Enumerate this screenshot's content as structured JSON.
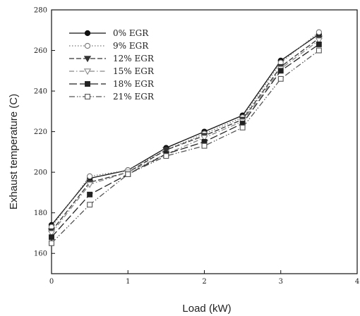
{
  "chart_data": {
    "type": "line",
    "title": "",
    "xlabel": "Load (kW)",
    "ylabel": "Exhaust temperature (C)",
    "xlim": [
      0,
      4
    ],
    "ylim": [
      150,
      280
    ],
    "xticks": [
      0,
      1,
      2,
      3,
      4
    ],
    "yticks": [
      160,
      180,
      200,
      220,
      240,
      260,
      280
    ],
    "grid": false,
    "legend_position": "top-left",
    "x": [
      0,
      0.5,
      1,
      1.5,
      2,
      2.5,
      3,
      3.5
    ],
    "series": [
      {
        "name": "0% EGR",
        "marker": "circle-filled",
        "dash": "solid",
        "values": [
          174,
          197,
          201,
          212,
          220,
          228,
          255,
          268
        ]
      },
      {
        "name": "9% EGR",
        "marker": "circle-open",
        "dash": "dotted",
        "values": [
          173,
          198,
          201,
          211,
          219,
          227,
          254,
          269
        ]
      },
      {
        "name": "12% EGR",
        "marker": "triangle-filled",
        "dash": "dashed",
        "values": [
          171,
          195,
          200,
          211,
          218,
          226,
          252,
          266
        ]
      },
      {
        "name": "15% EGR",
        "marker": "triangle-open",
        "dash": "dashdot",
        "values": [
          170,
          194,
          200,
          209,
          217,
          225,
          251,
          265
        ]
      },
      {
        "name": "18% EGR",
        "marker": "square-filled",
        "dash": "longdash",
        "values": [
          168,
          189,
          199,
          209,
          215,
          224,
          250,
          263
        ]
      },
      {
        "name": "21% EGR",
        "marker": "square-open",
        "dash": "dashdotdot",
        "values": [
          165,
          184,
          199,
          208,
          213,
          222,
          246,
          260
        ]
      }
    ]
  }
}
